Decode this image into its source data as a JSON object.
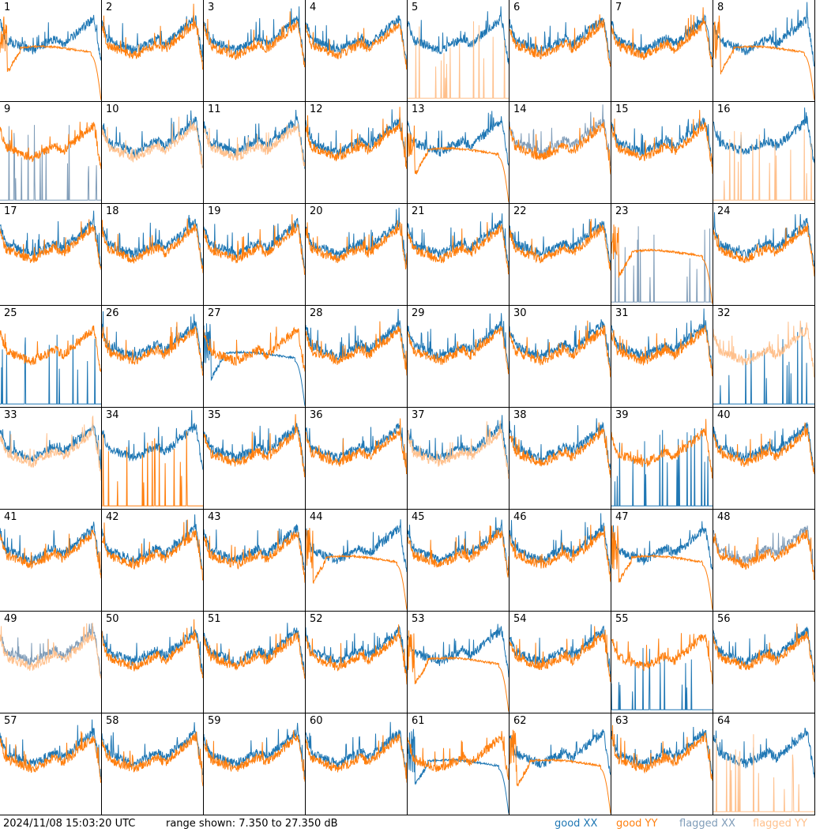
{
  "footer": {
    "timestamp": "2024/11/08 15:03:20 UTC",
    "range_text": "range shown: 7.350 to 27.350 dB"
  },
  "legend": [
    {
      "label": "good XX",
      "color": "#1f77b4"
    },
    {
      "label": "good YY",
      "color": "#ff7f0e"
    },
    {
      "label": "flagged XX",
      "color": "#7f9cb8"
    },
    {
      "label": "flagged YY",
      "color": "#ffc08c"
    }
  ],
  "colors": {
    "good_xx": "#1f77b4",
    "good_yy": "#ff7f0e",
    "flagged_xx": "#7f9cb8",
    "flagged_yy": "#ffc08c"
  },
  "chart_data": {
    "type": "line",
    "ylim": [
      7.35,
      27.35
    ],
    "yunit": "dB",
    "grid": false,
    "panels": [
      {
        "id": "1",
        "xx": "good",
        "yy": "good",
        "yy_shape": "dropped"
      },
      {
        "id": "2",
        "xx": "good",
        "yy": "good"
      },
      {
        "id": "3",
        "xx": "good",
        "yy": "good"
      },
      {
        "id": "4",
        "xx": "good",
        "yy": "good"
      },
      {
        "id": "5",
        "xx": "good",
        "yy": "flagged",
        "yy_shape": "spikes"
      },
      {
        "id": "6",
        "xx": "good",
        "yy": "good"
      },
      {
        "id": "7",
        "xx": "good",
        "yy": "good"
      },
      {
        "id": "8",
        "xx": "good",
        "yy": "good",
        "yy_shape": "dropped"
      },
      {
        "id": "9",
        "xx": "flagged",
        "yy": "good",
        "xx_shape": "spikes"
      },
      {
        "id": "10",
        "xx": "good",
        "yy": "flagged"
      },
      {
        "id": "11",
        "xx": "good",
        "yy": "flagged"
      },
      {
        "id": "12",
        "xx": "good",
        "yy": "good"
      },
      {
        "id": "13",
        "xx": "good",
        "yy": "good",
        "yy_shape": "dropped"
      },
      {
        "id": "14",
        "xx": "flagged",
        "yy": "good"
      },
      {
        "id": "15",
        "xx": "good",
        "yy": "good"
      },
      {
        "id": "16",
        "xx": "good",
        "yy": "flagged",
        "yy_shape": "spikes"
      },
      {
        "id": "17",
        "xx": "good",
        "yy": "good"
      },
      {
        "id": "18",
        "xx": "good",
        "yy": "good"
      },
      {
        "id": "19",
        "xx": "good",
        "yy": "good"
      },
      {
        "id": "20",
        "xx": "good",
        "yy": "good"
      },
      {
        "id": "21",
        "xx": "good",
        "yy": "good"
      },
      {
        "id": "22",
        "xx": "good",
        "yy": "good"
      },
      {
        "id": "23",
        "xx": "flagged",
        "yy": "good",
        "xx_shape": "spikes",
        "yy_shape": "dropped"
      },
      {
        "id": "24",
        "xx": "good",
        "yy": "good"
      },
      {
        "id": "25",
        "xx": "good",
        "yy": "good",
        "xx_shape": "spikes"
      },
      {
        "id": "26",
        "xx": "good",
        "yy": "good"
      },
      {
        "id": "27",
        "xx": "good",
        "yy": "good",
        "xx_shape": "dropped"
      },
      {
        "id": "28",
        "xx": "good",
        "yy": "good"
      },
      {
        "id": "29",
        "xx": "good",
        "yy": "good"
      },
      {
        "id": "30",
        "xx": "good",
        "yy": "good"
      },
      {
        "id": "31",
        "xx": "good",
        "yy": "good"
      },
      {
        "id": "32",
        "xx": "good",
        "yy": "flagged",
        "xx_shape": "spikes"
      },
      {
        "id": "33",
        "xx": "good",
        "yy": "flagged"
      },
      {
        "id": "34",
        "xx": "good",
        "yy": "good",
        "yy_shape": "spikes"
      },
      {
        "id": "35",
        "xx": "good",
        "yy": "good"
      },
      {
        "id": "36",
        "xx": "good",
        "yy": "good"
      },
      {
        "id": "37",
        "xx": "good",
        "yy": "flagged"
      },
      {
        "id": "38",
        "xx": "good",
        "yy": "good"
      },
      {
        "id": "39",
        "xx": "good",
        "yy": "good",
        "xx_shape": "spikes"
      },
      {
        "id": "40",
        "xx": "good",
        "yy": "good"
      },
      {
        "id": "41",
        "xx": "good",
        "yy": "good"
      },
      {
        "id": "42",
        "xx": "good",
        "yy": "good"
      },
      {
        "id": "43",
        "xx": "good",
        "yy": "good"
      },
      {
        "id": "44",
        "xx": "good",
        "yy": "good",
        "yy_shape": "dropped"
      },
      {
        "id": "45",
        "xx": "good",
        "yy": "good"
      },
      {
        "id": "46",
        "xx": "good",
        "yy": "good"
      },
      {
        "id": "47",
        "xx": "good",
        "yy": "good",
        "yy_shape": "dropped"
      },
      {
        "id": "48",
        "xx": "flagged",
        "yy": "good"
      },
      {
        "id": "49",
        "xx": "flagged",
        "yy": "flagged"
      },
      {
        "id": "50",
        "xx": "good",
        "yy": "good"
      },
      {
        "id": "51",
        "xx": "good",
        "yy": "good"
      },
      {
        "id": "52",
        "xx": "good",
        "yy": "good"
      },
      {
        "id": "53",
        "xx": "good",
        "yy": "good",
        "yy_shape": "dropped"
      },
      {
        "id": "54",
        "xx": "good",
        "yy": "good"
      },
      {
        "id": "55",
        "xx": "good",
        "yy": "good",
        "xx_shape": "spikes"
      },
      {
        "id": "56",
        "xx": "good",
        "yy": "good"
      },
      {
        "id": "57",
        "xx": "good",
        "yy": "good"
      },
      {
        "id": "58",
        "xx": "good",
        "yy": "good"
      },
      {
        "id": "59",
        "xx": "good",
        "yy": "good"
      },
      {
        "id": "60",
        "xx": "good",
        "yy": "good"
      },
      {
        "id": "61",
        "xx": "good",
        "yy": "good",
        "xx_shape": "dropped"
      },
      {
        "id": "62",
        "xx": "good",
        "yy": "good",
        "yy_shape": "dropped"
      },
      {
        "id": "63",
        "xx": "good",
        "yy": "good"
      },
      {
        "id": "64",
        "xx": "good",
        "yy": "flagged",
        "yy_shape": "spikes"
      }
    ]
  }
}
